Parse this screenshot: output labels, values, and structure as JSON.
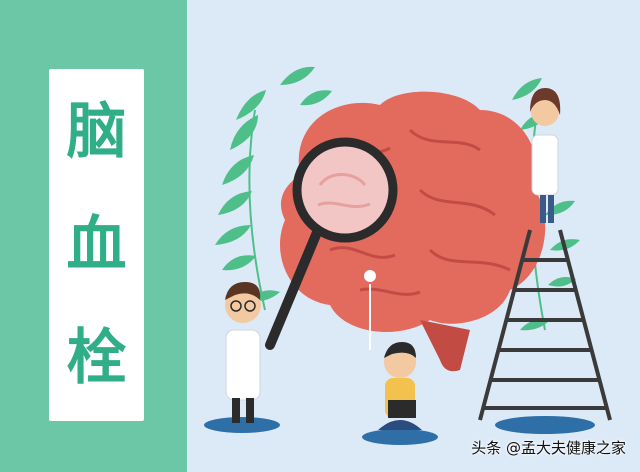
{
  "title": {
    "chars": [
      "脑",
      "血",
      "栓"
    ]
  },
  "watermark": {
    "text": "头条 @孟大夫健康之家"
  },
  "illustration": {
    "subject": "brain",
    "figures": [
      "magnifying-glass",
      "doctor-left",
      "doctor-on-ladder",
      "person-with-laptop",
      "ladder",
      "leaves"
    ]
  },
  "colors": {
    "left_panel": "#6cc7a6",
    "title_text": "#2fae87",
    "background": "#dce9f7",
    "brain": "#e36b5e",
    "leaf": "#4fbf8a"
  }
}
